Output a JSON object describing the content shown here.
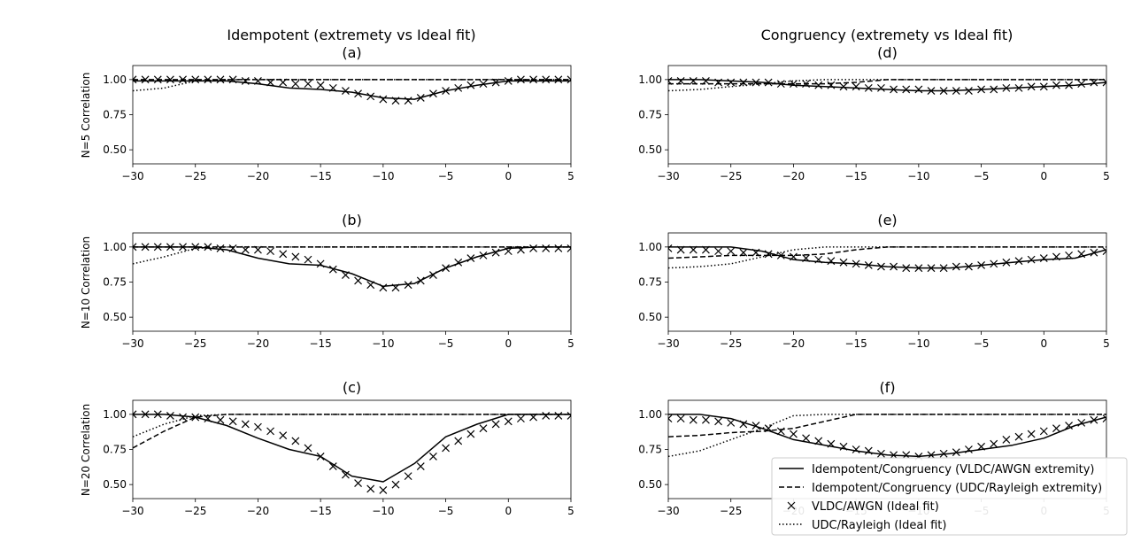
{
  "figure": {
    "column_titles": [
      "Idempotent (extremety vs Ideal fit)",
      "Congruency (extremety vs Ideal fit)"
    ],
    "row_labels": [
      "N=5 Correlation",
      "N=10 Correlation",
      "N=20 Correlation"
    ]
  },
  "legend": {
    "placement": "lower-right",
    "entries": [
      {
        "label": "Idempotent/Congruency (VLDC/AWGN extremity)",
        "style": "solid"
      },
      {
        "label": "Idempotent/Congruency (UDC/Rayleigh extremity)",
        "style": "dashed"
      },
      {
        "label": "VLDC/AWGN (Ideal fit)",
        "style": "x-marker"
      },
      {
        "label": "UDC/Rayleigh (Ideal fit)",
        "style": "dotted"
      }
    ]
  },
  "colors": {
    "line": "#000000",
    "background": "#ffffff"
  },
  "chart_data": [
    {
      "type": "line",
      "panel": "(a)",
      "column": 0,
      "row": 0,
      "x": [
        -30,
        -27.5,
        -25,
        -22.5,
        -20,
        -17.5,
        -15,
        -12.5,
        -10,
        -7.5,
        -5,
        -2.5,
        0,
        2.5,
        5
      ],
      "xlim": [
        -30,
        5
      ],
      "ylim": [
        0.4,
        1.1
      ],
      "xticks": [
        -30,
        -25,
        -20,
        -15,
        -10,
        -5,
        0,
        5
      ],
      "yticks": [
        "0.50",
        "0.75",
        "1.00"
      ],
      "series": [
        {
          "style": "solid",
          "values": [
            0.99,
            0.99,
            0.99,
            0.99,
            0.97,
            0.94,
            0.93,
            0.91,
            0.87,
            0.86,
            0.92,
            0.96,
            0.99,
            0.99,
            0.99
          ]
        },
        {
          "style": "dashed",
          "values": [
            1.0,
            1.0,
            1.0,
            1.0,
            1.0,
            1.0,
            1.0,
            1.0,
            1.0,
            1.0,
            1.0,
            1.0,
            1.0,
            1.0,
            1.0
          ]
        },
        {
          "style": "dotted",
          "values": [
            0.92,
            0.94,
            0.99,
            1.0,
            1.0,
            1.0,
            1.0,
            1.0,
            1.0,
            1.0,
            1.0,
            1.0,
            1.0,
            1.0,
            1.0
          ]
        },
        {
          "style": "x-marker",
          "x": [
            -30,
            -29,
            -28,
            -27,
            -26,
            -25,
            -24,
            -23,
            -22,
            -21,
            -20,
            -19,
            -18,
            -17,
            -16,
            -15,
            -14,
            -13,
            -12,
            -11,
            -10,
            -9,
            -8,
            -7,
            -6,
            -5,
            -4,
            -3,
            -2,
            -1,
            0,
            1,
            2,
            3,
            4,
            5
          ],
          "values": [
            1.0,
            1.0,
            1.0,
            1.0,
            1.0,
            1.0,
            1.0,
            1.0,
            1.0,
            0.99,
            0.99,
            0.98,
            0.98,
            0.97,
            0.97,
            0.96,
            0.94,
            0.92,
            0.9,
            0.88,
            0.86,
            0.85,
            0.85,
            0.87,
            0.9,
            0.92,
            0.94,
            0.96,
            0.97,
            0.98,
            0.99,
            1.0,
            1.0,
            1.0,
            1.0,
            1.0
          ]
        }
      ]
    },
    {
      "type": "line",
      "panel": "(b)",
      "column": 0,
      "row": 1,
      "x": [
        -30,
        -27.5,
        -25,
        -22.5,
        -20,
        -17.5,
        -15,
        -12.5,
        -10,
        -7.5,
        -5,
        -2.5,
        0,
        2.5,
        5
      ],
      "xlim": [
        -30,
        5
      ],
      "ylim": [
        0.4,
        1.1
      ],
      "xticks": [
        -30,
        -25,
        -20,
        -15,
        -10,
        -5,
        0,
        5
      ],
      "yticks": [
        "0.50",
        "0.75",
        "1.00"
      ],
      "series": [
        {
          "style": "solid",
          "values": [
            1.0,
            1.0,
            1.0,
            0.98,
            0.92,
            0.88,
            0.87,
            0.81,
            0.72,
            0.74,
            0.85,
            0.93,
            0.99,
            1.0,
            1.0
          ]
        },
        {
          "style": "dashed",
          "values": [
            1.0,
            1.0,
            1.0,
            1.0,
            1.0,
            1.0,
            1.0,
            1.0,
            1.0,
            1.0,
            1.0,
            1.0,
            1.0,
            1.0,
            1.0
          ]
        },
        {
          "style": "dotted",
          "values": [
            0.88,
            0.93,
            0.99,
            1.0,
            1.0,
            1.0,
            1.0,
            1.0,
            1.0,
            1.0,
            1.0,
            1.0,
            1.0,
            1.0,
            1.0
          ]
        },
        {
          "style": "x-marker",
          "x": [
            -30,
            -29,
            -28,
            -27,
            -26,
            -25,
            -24,
            -23,
            -22,
            -21,
            -20,
            -19,
            -18,
            -17,
            -16,
            -15,
            -14,
            -13,
            -12,
            -11,
            -10,
            -9,
            -8,
            -7,
            -6,
            -5,
            -4,
            -3,
            -2,
            -1,
            0,
            1,
            2,
            3,
            4,
            5
          ],
          "values": [
            1.0,
            1.0,
            1.0,
            1.0,
            1.0,
            1.0,
            1.0,
            0.99,
            0.99,
            0.98,
            0.98,
            0.97,
            0.95,
            0.93,
            0.91,
            0.88,
            0.84,
            0.8,
            0.76,
            0.73,
            0.71,
            0.71,
            0.73,
            0.76,
            0.8,
            0.85,
            0.89,
            0.92,
            0.94,
            0.96,
            0.97,
            0.98,
            0.99,
            0.99,
            0.99,
            0.99
          ]
        }
      ]
    },
    {
      "type": "line",
      "panel": "(c)",
      "column": 0,
      "row": 2,
      "x": [
        -30,
        -27.5,
        -25,
        -22.5,
        -20,
        -17.5,
        -15,
        -12.5,
        -10,
        -7.5,
        -5,
        -2.5,
        0,
        2.5,
        5
      ],
      "xlim": [
        -30,
        5
      ],
      "ylim": [
        0.4,
        1.1
      ],
      "xticks": [
        -30,
        -25,
        -20,
        -15,
        -10,
        -5,
        0,
        5
      ],
      "yticks": [
        "0.50",
        "0.75",
        "1.00"
      ],
      "series": [
        {
          "style": "solid",
          "values": [
            1.0,
            1.0,
            0.98,
            0.92,
            0.83,
            0.75,
            0.7,
            0.56,
            0.52,
            0.65,
            0.84,
            0.93,
            1.0,
            1.0,
            1.0
          ]
        },
        {
          "style": "dashed",
          "values": [
            0.76,
            0.88,
            0.98,
            1.0,
            1.0,
            1.0,
            1.0,
            1.0,
            1.0,
            1.0,
            1.0,
            1.0,
            1.0,
            1.0,
            1.0
          ]
        },
        {
          "style": "dotted",
          "values": [
            0.84,
            0.93,
            0.99,
            1.0,
            1.0,
            1.0,
            1.0,
            1.0,
            1.0,
            1.0,
            1.0,
            1.0,
            1.0,
            1.0,
            1.0
          ]
        },
        {
          "style": "x-marker",
          "x": [
            -30,
            -29,
            -28,
            -27,
            -26,
            -25,
            -24,
            -23,
            -22,
            -21,
            -20,
            -19,
            -18,
            -17,
            -16,
            -15,
            -14,
            -13,
            -12,
            -11,
            -10,
            -9,
            -8,
            -7,
            -6,
            -5,
            -4,
            -3,
            -2,
            -1,
            0,
            1,
            2,
            3,
            4,
            5
          ],
          "values": [
            1.0,
            1.0,
            1.0,
            0.99,
            0.98,
            0.98,
            0.97,
            0.96,
            0.95,
            0.93,
            0.91,
            0.88,
            0.85,
            0.81,
            0.76,
            0.7,
            0.63,
            0.57,
            0.51,
            0.47,
            0.46,
            0.5,
            0.56,
            0.63,
            0.7,
            0.76,
            0.81,
            0.86,
            0.9,
            0.93,
            0.95,
            0.97,
            0.98,
            0.99,
            0.99,
            0.99
          ]
        }
      ]
    },
    {
      "type": "line",
      "panel": "(d)",
      "column": 1,
      "row": 0,
      "x": [
        -30,
        -27.5,
        -25,
        -22.5,
        -20,
        -17.5,
        -15,
        -12.5,
        -10,
        -7.5,
        -5,
        -2.5,
        0,
        2.5,
        5
      ],
      "xlim": [
        -30,
        5
      ],
      "ylim": [
        0.4,
        1.1
      ],
      "xticks": [
        -30,
        -25,
        -20,
        -15,
        -10,
        -5,
        0,
        5
      ],
      "yticks": [
        "0.50",
        "0.75",
        "1.00"
      ],
      "series": [
        {
          "style": "solid",
          "values": [
            1.0,
            1.0,
            0.99,
            0.98,
            0.96,
            0.95,
            0.94,
            0.93,
            0.92,
            0.92,
            0.93,
            0.94,
            0.95,
            0.96,
            0.98
          ]
        },
        {
          "style": "dashed",
          "values": [
            0.97,
            0.97,
            0.97,
            0.97,
            0.97,
            0.97,
            0.98,
            1.0,
            1.0,
            1.0,
            1.0,
            1.0,
            1.0,
            1.0,
            1.0
          ]
        },
        {
          "style": "dotted",
          "values": [
            0.92,
            0.93,
            0.95,
            0.97,
            0.99,
            1.0,
            1.0,
            1.0,
            1.0,
            1.0,
            1.0,
            1.0,
            1.0,
            1.0,
            1.0
          ]
        },
        {
          "style": "x-marker",
          "x": [
            -30,
            -29,
            -28,
            -27,
            -26,
            -25,
            -24,
            -23,
            -22,
            -21,
            -20,
            -19,
            -18,
            -17,
            -16,
            -15,
            -14,
            -13,
            -12,
            -11,
            -10,
            -9,
            -8,
            -7,
            -6,
            -5,
            -4,
            -3,
            -2,
            -1,
            0,
            1,
            2,
            3,
            4,
            5
          ],
          "values": [
            0.99,
            0.99,
            0.99,
            0.99,
            0.98,
            0.98,
            0.98,
            0.98,
            0.98,
            0.97,
            0.97,
            0.97,
            0.96,
            0.96,
            0.95,
            0.95,
            0.94,
            0.94,
            0.93,
            0.93,
            0.93,
            0.92,
            0.92,
            0.92,
            0.92,
            0.93,
            0.93,
            0.94,
            0.94,
            0.95,
            0.95,
            0.96,
            0.96,
            0.97,
            0.98,
            0.98
          ]
        }
      ]
    },
    {
      "type": "line",
      "panel": "(e)",
      "column": 1,
      "row": 1,
      "x": [
        -30,
        -27.5,
        -25,
        -22.5,
        -20,
        -17.5,
        -15,
        -12.5,
        -10,
        -7.5,
        -5,
        -2.5,
        0,
        2.5,
        5
      ],
      "xlim": [
        -30,
        5
      ],
      "ylim": [
        0.4,
        1.1
      ],
      "xticks": [
        -30,
        -25,
        -20,
        -15,
        -10,
        -5,
        0,
        5
      ],
      "yticks": [
        "0.50",
        "0.75",
        "1.00"
      ],
      "series": [
        {
          "style": "solid",
          "values": [
            1.0,
            1.0,
            1.0,
            0.97,
            0.91,
            0.89,
            0.88,
            0.86,
            0.85,
            0.85,
            0.87,
            0.89,
            0.91,
            0.92,
            0.98
          ]
        },
        {
          "style": "dashed",
          "values": [
            0.92,
            0.93,
            0.94,
            0.94,
            0.94,
            0.95,
            0.98,
            1.0,
            1.0,
            1.0,
            1.0,
            1.0,
            1.0,
            1.0,
            1.0
          ]
        },
        {
          "style": "dotted",
          "values": [
            0.85,
            0.86,
            0.88,
            0.93,
            0.98,
            1.0,
            1.0,
            1.0,
            1.0,
            1.0,
            1.0,
            1.0,
            1.0,
            1.0,
            1.0
          ]
        },
        {
          "style": "x-marker",
          "x": [
            -30,
            -29,
            -28,
            -27,
            -26,
            -25,
            -24,
            -23,
            -22,
            -21,
            -20,
            -19,
            -18,
            -17,
            -16,
            -15,
            -14,
            -13,
            -12,
            -11,
            -10,
            -9,
            -8,
            -7,
            -6,
            -5,
            -4,
            -3,
            -2,
            -1,
            0,
            1,
            2,
            3,
            4,
            5
          ],
          "values": [
            0.99,
            0.98,
            0.98,
            0.98,
            0.97,
            0.97,
            0.96,
            0.96,
            0.95,
            0.94,
            0.93,
            0.92,
            0.91,
            0.9,
            0.89,
            0.88,
            0.87,
            0.86,
            0.86,
            0.85,
            0.85,
            0.85,
            0.85,
            0.86,
            0.86,
            0.87,
            0.88,
            0.89,
            0.9,
            0.91,
            0.92,
            0.93,
            0.94,
            0.95,
            0.96,
            0.97
          ]
        }
      ]
    },
    {
      "type": "line",
      "panel": "(f)",
      "column": 1,
      "row": 2,
      "x": [
        -30,
        -27.5,
        -25,
        -22.5,
        -20,
        -17.5,
        -15,
        -12.5,
        -10,
        -7.5,
        -5,
        -2.5,
        0,
        2.5,
        5
      ],
      "xlim": [
        -30,
        5
      ],
      "ylim": [
        0.4,
        1.1
      ],
      "xticks": [
        -30,
        -25,
        -20,
        -15,
        -10,
        -5,
        0,
        5
      ],
      "yticks": [
        "0.50",
        "0.75",
        "1.00"
      ],
      "series": [
        {
          "style": "solid",
          "values": [
            1.0,
            1.0,
            0.97,
            0.9,
            0.82,
            0.78,
            0.74,
            0.71,
            0.7,
            0.72,
            0.75,
            0.78,
            0.83,
            0.92,
            0.98
          ]
        },
        {
          "style": "dashed",
          "values": [
            0.84,
            0.85,
            0.87,
            0.88,
            0.9,
            0.95,
            1.0,
            1.0,
            1.0,
            1.0,
            1.0,
            1.0,
            1.0,
            1.0,
            1.0
          ]
        },
        {
          "style": "dotted",
          "values": [
            0.7,
            0.74,
            0.82,
            0.9,
            0.99,
            1.0,
            1.0,
            1.0,
            1.0,
            1.0,
            1.0,
            1.0,
            1.0,
            1.0,
            1.0
          ]
        },
        {
          "style": "x-marker",
          "x": [
            -30,
            -29,
            -28,
            -27,
            -26,
            -25,
            -24,
            -23,
            -22,
            -21,
            -20,
            -19,
            -18,
            -17,
            -16,
            -15,
            -14,
            -13,
            -12,
            -11,
            -10,
            -9,
            -8,
            -7,
            -6,
            -5,
            -4,
            -3,
            -2,
            -1,
            0,
            1,
            2,
            3,
            4,
            5
          ],
          "values": [
            0.97,
            0.97,
            0.96,
            0.96,
            0.95,
            0.94,
            0.93,
            0.92,
            0.9,
            0.88,
            0.86,
            0.83,
            0.81,
            0.79,
            0.77,
            0.75,
            0.74,
            0.72,
            0.71,
            0.71,
            0.7,
            0.71,
            0.72,
            0.73,
            0.75,
            0.77,
            0.79,
            0.82,
            0.84,
            0.86,
            0.88,
            0.9,
            0.92,
            0.94,
            0.96,
            0.97
          ]
        }
      ]
    }
  ]
}
